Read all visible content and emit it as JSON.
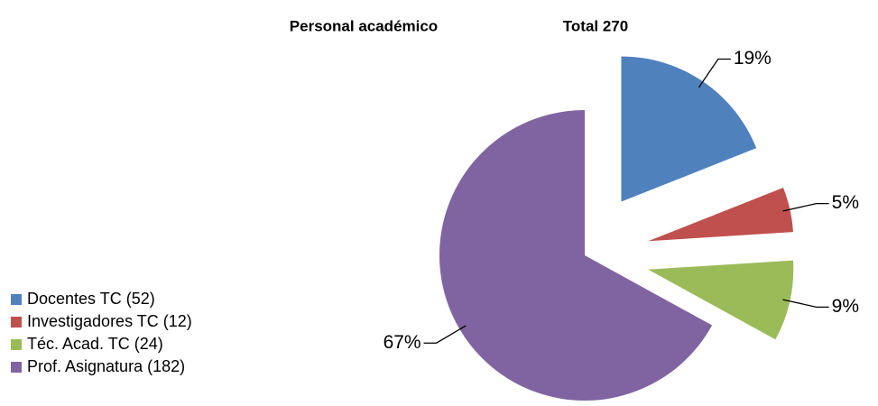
{
  "chart_data": {
    "type": "pie",
    "title": "Personal académico",
    "subtitle": "Total 270",
    "categories": [
      "Docentes TC (52)",
      "Investigadores TC (12)",
      "Téc. Acad. TC (24)",
      "Prof. Asignatura (182)"
    ],
    "values": [
      19,
      5,
      9,
      67
    ],
    "value_labels": [
      "19%",
      "5%",
      "9%",
      "67%"
    ],
    "colors": [
      "#4f81bd",
      "#c0504d",
      "#9bbb59",
      "#8064a2"
    ],
    "legend": "left"
  }
}
